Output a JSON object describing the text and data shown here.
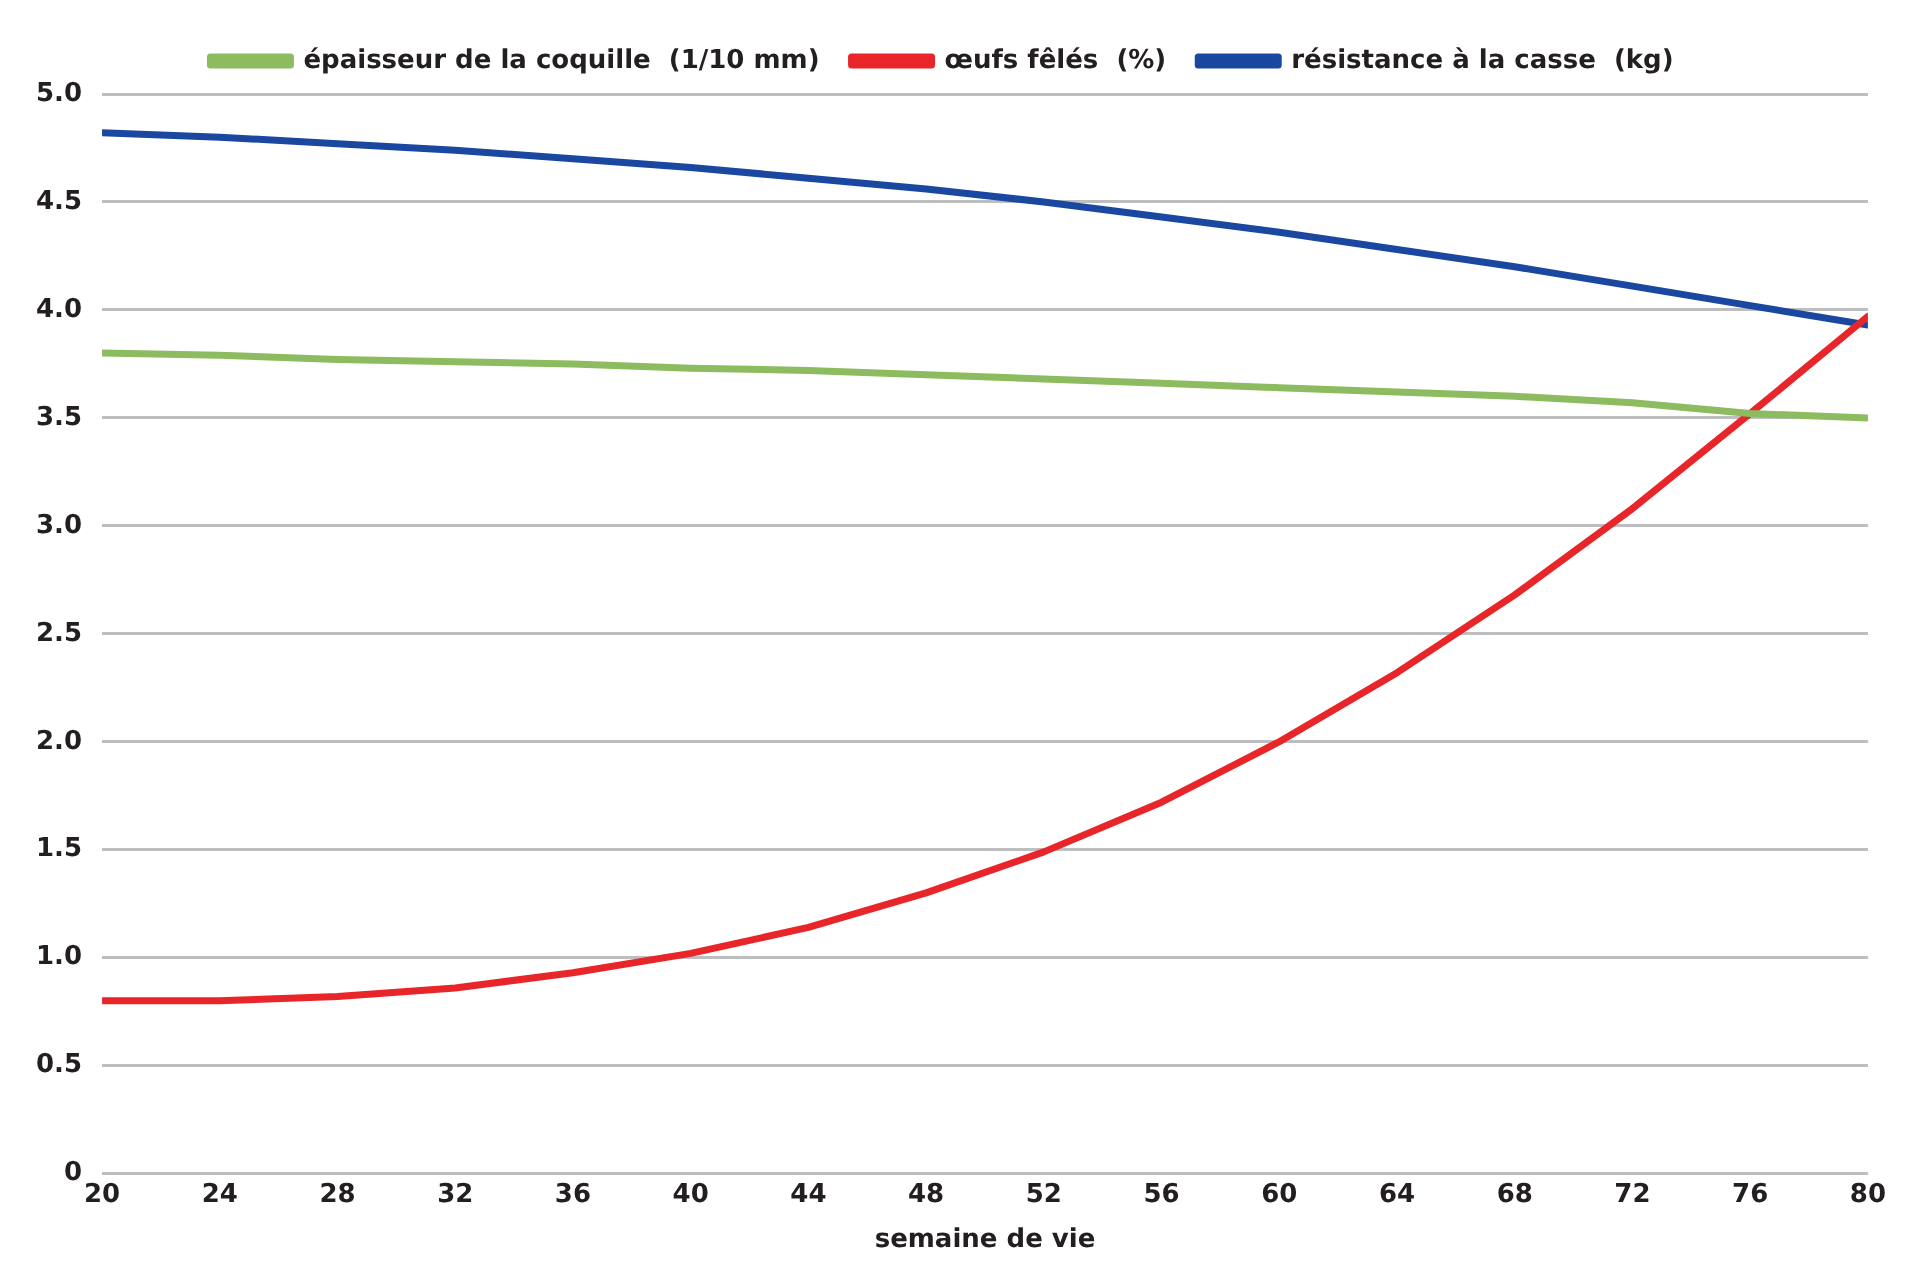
{
  "chart_data": {
    "type": "line",
    "xlabel": "semaine de vie",
    "x": [
      20,
      24,
      28,
      32,
      36,
      40,
      44,
      48,
      52,
      56,
      60,
      64,
      68,
      72,
      76,
      80
    ],
    "series": [
      {
        "name": "épaisseur de la coquille  (1/10 mm)",
        "color": "#8dbb5f",
        "values": [
          3.8,
          3.79,
          3.77,
          3.76,
          3.75,
          3.73,
          3.72,
          3.7,
          3.68,
          3.66,
          3.64,
          3.62,
          3.6,
          3.57,
          3.52,
          3.5
        ]
      },
      {
        "name": "œufs fêlés  (%)",
        "color": "#e8262a",
        "values": [
          0.8,
          0.8,
          0.82,
          0.86,
          0.93,
          1.02,
          1.14,
          1.3,
          1.49,
          1.72,
          2.0,
          2.32,
          2.68,
          3.08,
          3.52,
          3.97
        ]
      },
      {
        "name": "résistance à la casse  (kg)",
        "color": "#1a47a0",
        "values": [
          4.82,
          4.8,
          4.77,
          4.74,
          4.7,
          4.66,
          4.61,
          4.56,
          4.5,
          4.43,
          4.36,
          4.28,
          4.2,
          4.11,
          4.02,
          3.93
        ]
      }
    ],
    "xlim": [
      20,
      80
    ],
    "xticks": [
      20,
      24,
      28,
      32,
      36,
      40,
      44,
      48,
      52,
      56,
      60,
      64,
      68,
      72,
      76,
      80
    ],
    "ylim": [
      0,
      5
    ],
    "yticks": [
      0,
      {
        "value": 0.5,
        "label": "0.5"
      },
      {
        "value": 1,
        "label": "1.0"
      },
      {
        "value": 1.5,
        "label": "1.5"
      },
      {
        "value": 2,
        "label": "2.0"
      },
      {
        "value": 2.5,
        "label": "2.5"
      },
      {
        "value": 3,
        "label": "3.0"
      },
      {
        "value": 3.5,
        "label": "3.5"
      },
      {
        "value": 4,
        "label": "4.0"
      },
      {
        "value": 4.5,
        "label": "4.5"
      },
      {
        "value": 5,
        "label": "5.0"
      }
    ],
    "grid": "y",
    "legend": "top",
    "marker": "none",
    "line_style": "solid"
  }
}
